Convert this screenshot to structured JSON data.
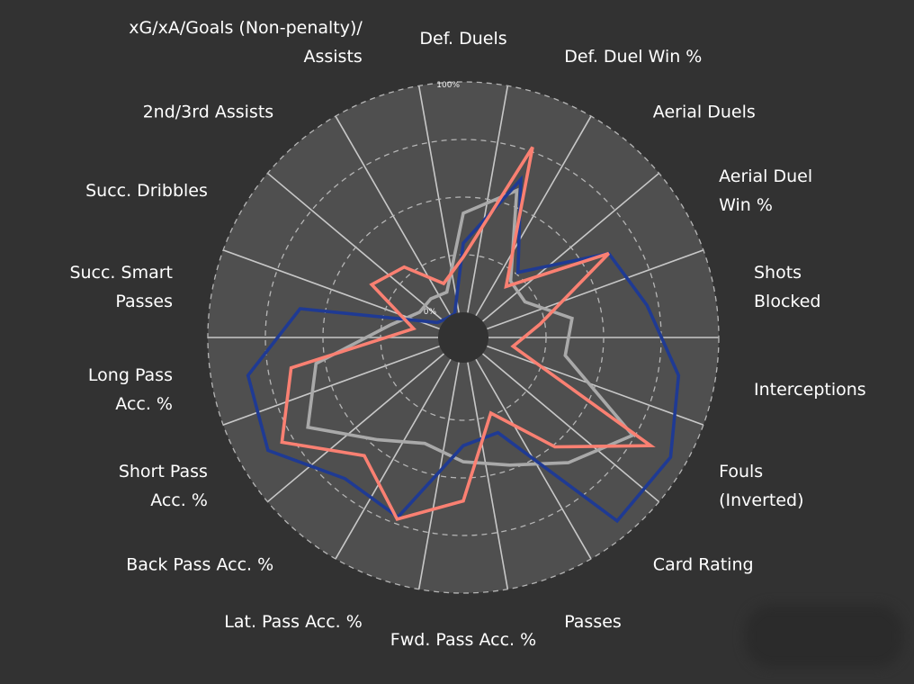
{
  "chart_data": {
    "type": "radar",
    "title": "",
    "range": [
      0,
      100
    ],
    "ring_labels": {
      "inner": "0%",
      "outer": "100%"
    },
    "axes": [
      {
        "lines": [
          "Def. Duels"
        ]
      },
      {
        "lines": [
          "Def. Duel Win %"
        ]
      },
      {
        "lines": [
          "Aerial Duels"
        ]
      },
      {
        "lines": [
          "Aerial Duel",
          "Win %"
        ]
      },
      {
        "lines": [
          "Shots",
          "Blocked"
        ]
      },
      {
        "lines": [
          "Interceptions"
        ]
      },
      {
        "lines": [
          "Fouls",
          "(Inverted)"
        ]
      },
      {
        "lines": [
          "Card Rating"
        ]
      },
      {
        "lines": [
          "Passes"
        ]
      },
      {
        "lines": [
          "Fwd. Pass Acc. %"
        ]
      },
      {
        "lines": [
          "Lat. Pass Acc. %"
        ]
      },
      {
        "lines": [
          "Back Pass Acc. %"
        ]
      },
      {
        "lines": [
          "Short Pass",
          "Acc. %"
        ]
      },
      {
        "lines": [
          "Long Pass",
          "Acc. %"
        ]
      },
      {
        "lines": [
          "Succ. Smart",
          "Passes"
        ]
      },
      {
        "lines": [
          "Succ. Dribbles"
        ]
      },
      {
        "lines": [
          "2nd/3rd Assists"
        ]
      },
      {
        "lines": [
          "xG/xA/Goals (Non-penalty)/",
          "Assists"
        ]
      }
    ],
    "series": [
      {
        "color": "#a9a9a9",
        "values": [
          43,
          57,
          21,
          20,
          37,
          34,
          74,
          60,
          48,
          43,
          38,
          47,
          67,
          54,
          21,
          11,
          11,
          10
        ]
      },
      {
        "color": "#1f3a93",
        "values": [
          30,
          62,
          26,
          62,
          70,
          84,
          93,
          93,
          33,
          36,
          72,
          69,
          87,
          84,
          61,
          2,
          0,
          0
        ]
      },
      {
        "color": "#fa8072",
        "values": [
          24,
          77,
          18,
          62,
          23,
          11,
          83,
          51,
          24,
          60,
          73,
          56,
          80,
          65,
          11,
          35,
          29,
          14
        ]
      }
    ]
  }
}
